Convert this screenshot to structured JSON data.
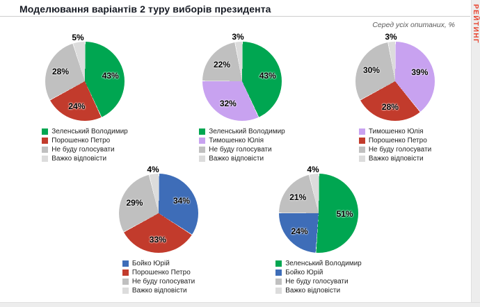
{
  "header": {
    "title": "Моделювання варіантів 2 туру виборів президента",
    "subtitle": "Серед усіх опитаних, %",
    "watermark": "РЕЙТИНГ"
  },
  "chart_data": [
    {
      "type": "pie",
      "start": "12-oclock",
      "direction": "clockwise",
      "slices": [
        {
          "label": "Зеленський Володимир",
          "value": 43,
          "color": "#00a651"
        },
        {
          "label": "Порошенко Петро",
          "value": 24,
          "color": "#c23b2c"
        },
        {
          "label": "Не буду голосувати",
          "value": 28,
          "color": "#c0c0c0"
        },
        {
          "label": "Важко відповісти",
          "value": 5,
          "color": "#dcdcdc"
        }
      ]
    },
    {
      "type": "pie",
      "start": "12-oclock",
      "direction": "clockwise",
      "slices": [
        {
          "label": "Зеленський Володимир",
          "value": 43,
          "color": "#00a651"
        },
        {
          "label": "Тимошенко Юлія",
          "value": 32,
          "color": "#c8a2f0"
        },
        {
          "label": "Не буду голосувати",
          "value": 22,
          "color": "#c0c0c0"
        },
        {
          "label": "Важко відповісти",
          "value": 3,
          "color": "#dcdcdc"
        }
      ]
    },
    {
      "type": "pie",
      "start": "12-oclock",
      "direction": "clockwise",
      "slices": [
        {
          "label": "Тимошенко Юлія",
          "value": 39,
          "color": "#c8a2f0"
        },
        {
          "label": "Порошенко Петро",
          "value": 28,
          "color": "#c23b2c"
        },
        {
          "label": "Не буду голосувати",
          "value": 30,
          "color": "#c0c0c0"
        },
        {
          "label": "Важко відповісти",
          "value": 3,
          "color": "#dcdcdc"
        }
      ]
    },
    {
      "type": "pie",
      "start": "12-oclock",
      "direction": "clockwise",
      "slices": [
        {
          "label": "Бойко Юрій",
          "value": 34,
          "color": "#3e6db8"
        },
        {
          "label": "Порошенко Петро",
          "value": 33,
          "color": "#c23b2c"
        },
        {
          "label": "Не буду голосувати",
          "value": 29,
          "color": "#c0c0c0"
        },
        {
          "label": "Важко відповісти",
          "value": 4,
          "color": "#dcdcdc"
        }
      ]
    },
    {
      "type": "pie",
      "start": "12-oclock",
      "direction": "clockwise",
      "slices": [
        {
          "label": "Зеленський Володимир",
          "value": 51,
          "color": "#00a651"
        },
        {
          "label": "Бойко Юрій",
          "value": 24,
          "color": "#3e6db8"
        },
        {
          "label": "Не буду голосувати",
          "value": 21,
          "color": "#c0c0c0"
        },
        {
          "label": "Важко відповісти",
          "value": 4,
          "color": "#dcdcdc"
        }
      ]
    }
  ]
}
